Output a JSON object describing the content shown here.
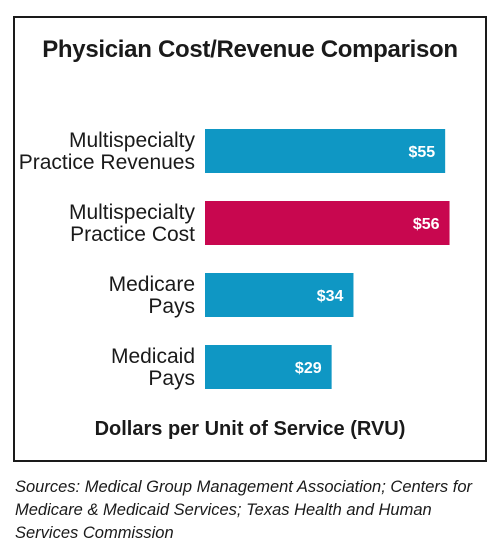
{
  "chart_data": {
    "type": "bar",
    "orientation": "horizontal",
    "title": "Physician Cost/Revenue Comparison",
    "xlabel": "Dollars per Unit of Service (RVU)",
    "ylabel": "",
    "xlim": [
      0,
      60
    ],
    "grid": false,
    "categories": [
      [
        "Multispecialty",
        "Practice Revenues"
      ],
      [
        "Multispecialty",
        "Practice Cost"
      ],
      [
        "Medicare",
        "Pays"
      ],
      [
        "Medicaid",
        "Pays"
      ]
    ],
    "values": [
      55,
      56,
      34,
      29
    ],
    "value_labels": [
      "$55",
      "$56",
      "$34",
      "$29"
    ],
    "colors": [
      "#0f97c4",
      "#c8074f",
      "#0f97c4",
      "#0f97c4"
    ]
  },
  "source_note": "Sources: Medical Group Management Association; Centers for Medicare & Medicaid Services; Texas Health and Human Services Commission"
}
